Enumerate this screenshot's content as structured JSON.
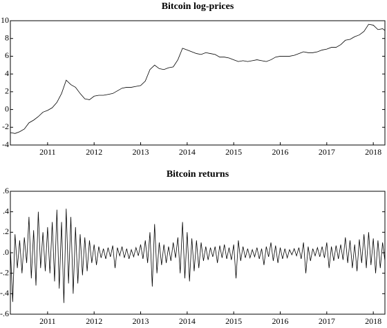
{
  "chart_data": [
    {
      "type": "line",
      "title": "Bitcoin log-prices",
      "color": "#000000",
      "x": [
        2010.2,
        2010.3,
        2010.4,
        2010.5,
        2010.6,
        2010.7,
        2010.8,
        2010.9,
        2011.0,
        2011.1,
        2011.2,
        2011.3,
        2011.4,
        2011.5,
        2011.6,
        2011.7,
        2011.8,
        2011.9,
        2012.0,
        2012.1,
        2012.2,
        2012.3,
        2012.4,
        2012.5,
        2012.6,
        2012.7,
        2012.8,
        2012.9,
        2013.0,
        2013.1,
        2013.2,
        2013.3,
        2013.4,
        2013.5,
        2013.6,
        2013.7,
        2013.8,
        2013.9,
        2014.0,
        2014.1,
        2014.2,
        2014.3,
        2014.4,
        2014.5,
        2014.6,
        2014.7,
        2014.8,
        2014.9,
        2015.0,
        2015.1,
        2015.2,
        2015.3,
        2015.4,
        2015.5,
        2015.6,
        2015.7,
        2015.8,
        2015.9,
        2016.0,
        2016.1,
        2016.2,
        2016.3,
        2016.4,
        2016.5,
        2016.6,
        2016.7,
        2016.8,
        2016.9,
        2017.0,
        2017.1,
        2017.2,
        2017.3,
        2017.4,
        2017.5,
        2017.6,
        2017.7,
        2017.8,
        2017.9,
        2018.0,
        2018.1,
        2018.2,
        2018.25
      ],
      "values": [
        -2.6,
        -2.7,
        -2.5,
        -2.2,
        -1.5,
        -1.2,
        -0.8,
        -0.3,
        -0.1,
        0.2,
        0.8,
        1.8,
        3.3,
        2.8,
        2.5,
        1.8,
        1.2,
        1.1,
        1.5,
        1.6,
        1.6,
        1.7,
        1.8,
        2.1,
        2.4,
        2.5,
        2.5,
        2.6,
        2.7,
        3.2,
        4.5,
        5.0,
        4.6,
        4.5,
        4.7,
        4.8,
        5.6,
        6.9,
        6.7,
        6.5,
        6.3,
        6.2,
        6.4,
        6.3,
        6.2,
        5.9,
        5.9,
        5.8,
        5.6,
        5.4,
        5.5,
        5.4,
        5.5,
        5.6,
        5.5,
        5.4,
        5.6,
        5.9,
        6.0,
        6.0,
        6.0,
        6.1,
        6.3,
        6.5,
        6.4,
        6.4,
        6.5,
        6.7,
        6.8,
        7.0,
        7.0,
        7.3,
        7.8,
        7.9,
        8.2,
        8.4,
        8.8,
        9.6,
        9.5,
        9.0,
        9.1,
        8.9
      ],
      "xlim": [
        2010.2,
        2018.25
      ],
      "xticks": [
        2011,
        2012,
        2013,
        2014,
        2015,
        2016,
        2017,
        2018
      ],
      "ylim": [
        -4,
        10
      ],
      "yticks": [
        -4,
        -2,
        0,
        2,
        4,
        6,
        8,
        10
      ],
      "grid": false
    },
    {
      "type": "line",
      "title": "Bitcoin returns",
      "color": "#000000",
      "x": [
        2010.2,
        2010.25,
        2010.3,
        2010.35,
        2010.4,
        2010.45,
        2010.5,
        2010.55,
        2010.6,
        2010.65,
        2010.7,
        2010.75,
        2010.8,
        2010.85,
        2010.9,
        2010.95,
        2011.0,
        2011.05,
        2011.1,
        2011.15,
        2011.2,
        2011.25,
        2011.3,
        2011.35,
        2011.4,
        2011.45,
        2011.5,
        2011.55,
        2011.6,
        2011.65,
        2011.7,
        2011.75,
        2011.8,
        2011.85,
        2011.9,
        2011.95,
        2012.0,
        2012.05,
        2012.1,
        2012.15,
        2012.2,
        2012.25,
        2012.3,
        2012.35,
        2012.4,
        2012.45,
        2012.5,
        2012.55,
        2012.6,
        2012.65,
        2012.7,
        2012.75,
        2012.8,
        2012.85,
        2012.9,
        2012.95,
        2013.0,
        2013.05,
        2013.1,
        2013.15,
        2013.2,
        2013.25,
        2013.3,
        2013.35,
        2013.4,
        2013.45,
        2013.5,
        2013.55,
        2013.6,
        2013.65,
        2013.7,
        2013.75,
        2013.8,
        2013.85,
        2013.9,
        2013.95,
        2014.0,
        2014.05,
        2014.1,
        2014.15,
        2014.2,
        2014.25,
        2014.3,
        2014.35,
        2014.4,
        2014.45,
        2014.5,
        2014.55,
        2014.6,
        2014.65,
        2014.7,
        2014.75,
        2014.8,
        2014.85,
        2014.9,
        2014.95,
        2015.0,
        2015.05,
        2015.1,
        2015.15,
        2015.2,
        2015.25,
        2015.3,
        2015.35,
        2015.4,
        2015.45,
        2015.5,
        2015.55,
        2015.6,
        2015.65,
        2015.7,
        2015.75,
        2015.8,
        2015.85,
        2015.9,
        2015.95,
        2016.0,
        2016.05,
        2016.1,
        2016.15,
        2016.2,
        2016.25,
        2016.3,
        2016.35,
        2016.4,
        2016.45,
        2016.5,
        2016.55,
        2016.6,
        2016.65,
        2016.7,
        2016.75,
        2016.8,
        2016.85,
        2016.9,
        2016.95,
        2017.0,
        2017.05,
        2017.1,
        2017.15,
        2017.2,
        2017.25,
        2017.3,
        2017.35,
        2017.4,
        2017.45,
        2017.5,
        2017.55,
        2017.6,
        2017.65,
        2017.7,
        2017.75,
        2017.8,
        2017.85,
        2017.9,
        2017.95,
        2018.0,
        2018.05,
        2018.1,
        2018.15,
        2018.2,
        2018.25
      ],
      "values": [
        0.05,
        -0.48,
        0.18,
        -0.15,
        0.12,
        -0.2,
        0.15,
        -0.1,
        0.35,
        -0.25,
        0.22,
        -0.32,
        0.4,
        -0.15,
        0.2,
        -0.18,
        0.25,
        -0.2,
        0.3,
        -0.28,
        0.42,
        -0.35,
        0.3,
        -0.49,
        0.43,
        -0.3,
        0.35,
        -0.4,
        0.25,
        -0.3,
        0.18,
        -0.22,
        0.15,
        -0.18,
        0.12,
        -0.1,
        0.08,
        -0.12,
        0.06,
        -0.05,
        0.04,
        -0.06,
        0.05,
        -0.04,
        0.07,
        -0.15,
        0.05,
        -0.03,
        0.06,
        -0.05,
        0.04,
        -0.06,
        0.03,
        -0.04,
        0.05,
        -0.03,
        0.08,
        -0.06,
        0.12,
        -0.1,
        0.2,
        -0.33,
        0.28,
        -0.2,
        0.1,
        -0.12,
        0.08,
        -0.1,
        0.06,
        -0.08,
        0.1,
        -0.05,
        0.15,
        -0.2,
        0.3,
        -0.25,
        0.2,
        -0.28,
        0.14,
        -0.18,
        0.12,
        -0.15,
        0.1,
        -0.08,
        0.06,
        -0.07,
        0.05,
        -0.04,
        0.06,
        -0.1,
        0.07,
        -0.05,
        0.08,
        -0.06,
        0.05,
        -0.07,
        0.08,
        -0.25,
        0.12,
        -0.08,
        0.06,
        -0.05,
        0.04,
        -0.05,
        0.03,
        -0.04,
        0.05,
        -0.06,
        0.04,
        -0.12,
        0.06,
        -0.04,
        0.1,
        -0.08,
        0.07,
        -0.1,
        0.05,
        -0.06,
        0.04,
        -0.05,
        0.03,
        -0.02,
        0.04,
        -0.03,
        0.05,
        -0.06,
        0.1,
        -0.2,
        0.06,
        -0.08,
        0.04,
        -0.03,
        0.05,
        -0.04,
        0.06,
        -0.05,
        0.1,
        -0.15,
        0.06,
        -0.08,
        0.07,
        -0.06,
        0.08,
        -0.07,
        0.15,
        -0.1,
        0.12,
        -0.15,
        0.08,
        -0.18,
        0.13,
        -0.1,
        0.18,
        -0.15,
        0.2,
        -0.12,
        0.14,
        -0.2,
        0.12,
        -0.15,
        0.1,
        -0.08
      ],
      "xlim": [
        2010.2,
        2018.25
      ],
      "xticks": [
        2011,
        2012,
        2013,
        2014,
        2015,
        2016,
        2017,
        2018
      ],
      "ylim": [
        -0.6,
        0.6
      ],
      "yticks": [
        {
          "value": -0.6,
          "label": "-.6"
        },
        {
          "value": -0.4,
          "label": "-.4"
        },
        {
          "value": -0.2,
          "label": "-.2"
        },
        {
          "value": 0,
          "label": ".0"
        },
        {
          "value": 0.2,
          "label": ".2"
        },
        {
          "value": 0.4,
          "label": ".4"
        },
        {
          "value": 0.6,
          "label": ".6"
        }
      ],
      "grid": false
    }
  ]
}
